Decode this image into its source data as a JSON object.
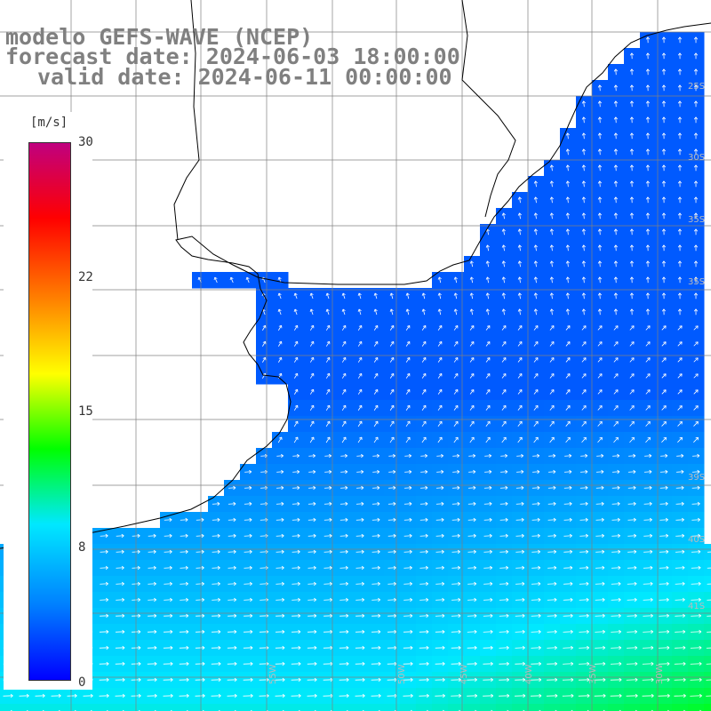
{
  "title": {
    "line1": "modelo GEFS-WAVE (NCEP)",
    "line2": "forecast date: 2024-06-03 18:00:00",
    "line3": "valid date: 2024-06-11 00:00:00"
  },
  "colorbar": {
    "units": "[m/s]",
    "ticks": [
      "30",
      "22",
      "15",
      "8",
      "0"
    ],
    "min": 0,
    "max": 30,
    "colors": [
      "#0000ff",
      "#0080ff",
      "#00e8ff",
      "#00ff00",
      "#ffff00",
      "#ff8000",
      "#ff0000",
      "#c0007f"
    ]
  },
  "map": {
    "land_color": "#ffffff",
    "grid_color": "#808080",
    "coast_color": "#000000",
    "arrow_color": "#ffffff",
    "lat_labels": [
      "25S",
      "30S",
      "35S",
      "35S",
      "39S",
      "40S",
      "41S"
    ],
    "lon_labels": [
      "60W",
      "55W",
      "50W",
      "45W",
      "40W",
      "35W",
      "30W"
    ]
  }
}
